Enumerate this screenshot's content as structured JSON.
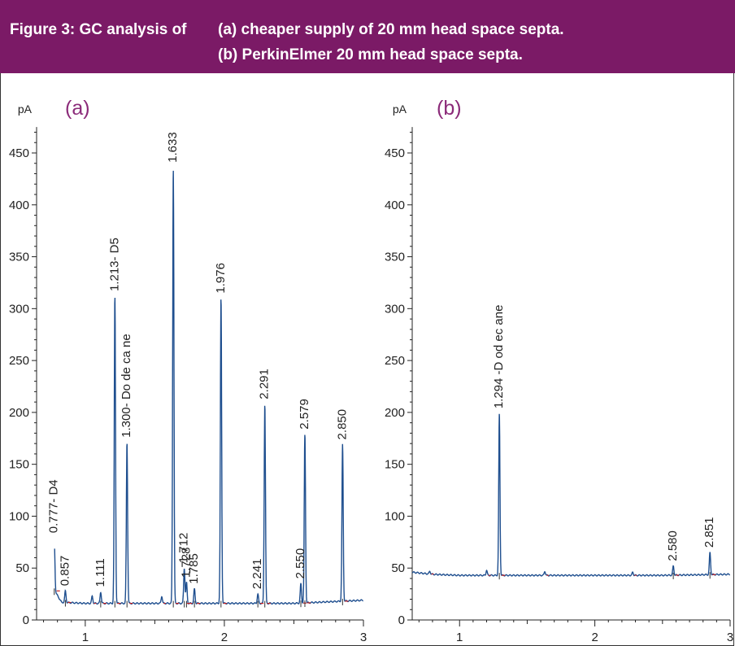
{
  "figure": {
    "label": "Figure 3: GC analysis of",
    "caption_a": "(a) cheaper supply of 20 mm head space septa.",
    "caption_b": "(b) PerkinElmer 20 mm head space septa."
  },
  "colors": {
    "banner": "#7b1a66",
    "trace": "#1f4f8f",
    "panel_label": "#8b2a79",
    "baseline_mark": "#cc2222"
  },
  "chart_data": [
    {
      "type": "line",
      "panel_label": "(a)",
      "ylabel": "pA",
      "xlabel": "",
      "xlim": [
        0.65,
        3.0
      ],
      "ylim": [
        0,
        475
      ],
      "xticks": [
        1,
        2,
        3
      ],
      "yticks": [
        0,
        50,
        100,
        150,
        200,
        250,
        300,
        350,
        400,
        450
      ],
      "baseline": [
        [
          0.78,
          28
        ],
        [
          0.83,
          17
        ],
        [
          1.0,
          16
        ],
        [
          1.5,
          16
        ],
        [
          2.0,
          16
        ],
        [
          2.5,
          16
        ],
        [
          3.0,
          19
        ]
      ],
      "peaks": [
        {
          "rt": 0.777,
          "height": 79,
          "label": "0.777-  D4"
        },
        {
          "rt": 0.857,
          "height": 28,
          "label": "0.857"
        },
        {
          "rt": 1.05,
          "height": 23,
          "label": ""
        },
        {
          "rt": 1.111,
          "height": 27,
          "label": "1.111"
        },
        {
          "rt": 1.213,
          "height": 312,
          "label": "1.213-  D5"
        },
        {
          "rt": 1.3,
          "height": 171,
          "label": "1.300-  Do de ca ne"
        },
        {
          "rt": 1.55,
          "height": 23,
          "label": ""
        },
        {
          "rt": 1.633,
          "height": 436,
          "label": "1.633"
        },
        {
          "rt": 1.712,
          "height": 50,
          "label": "1.712"
        },
        {
          "rt": 1.728,
          "height": 36,
          "label": "1.728"
        },
        {
          "rt": 1.785,
          "height": 30,
          "label": "1.785"
        },
        {
          "rt": 1.976,
          "height": 310,
          "label": "1.976"
        },
        {
          "rt": 2.241,
          "height": 25,
          "label": "2.241"
        },
        {
          "rt": 2.291,
          "height": 208,
          "label": "2.291"
        },
        {
          "rt": 2.55,
          "height": 35,
          "label": "2.550"
        },
        {
          "rt": 2.579,
          "height": 179,
          "label": "2.579"
        },
        {
          "rt": 2.85,
          "height": 169,
          "label": "2.850"
        }
      ]
    },
    {
      "type": "line",
      "panel_label": "(b)",
      "ylabel": "pA",
      "xlabel": "",
      "xlim": [
        0.65,
        3.0
      ],
      "ylim": [
        0,
        475
      ],
      "xticks": [
        1,
        2,
        3
      ],
      "yticks": [
        0,
        50,
        100,
        150,
        200,
        250,
        300,
        350,
        400,
        450
      ],
      "baseline": [
        [
          0.65,
          46
        ],
        [
          0.8,
          44
        ],
        [
          1.0,
          43
        ],
        [
          1.5,
          43
        ],
        [
          2.0,
          43
        ],
        [
          2.5,
          43
        ],
        [
          3.0,
          44
        ]
      ],
      "peaks": [
        {
          "rt": 0.78,
          "height": 47,
          "label": ""
        },
        {
          "rt": 1.2,
          "height": 48,
          "label": ""
        },
        {
          "rt": 1.294,
          "height": 199,
          "label": "1.294 -D    od ec ane"
        },
        {
          "rt": 1.63,
          "height": 47,
          "label": ""
        },
        {
          "rt": 2.28,
          "height": 46,
          "label": ""
        },
        {
          "rt": 2.58,
          "height": 52,
          "label": "2.580"
        },
        {
          "rt": 2.851,
          "height": 65,
          "label": "2.851"
        }
      ]
    }
  ]
}
